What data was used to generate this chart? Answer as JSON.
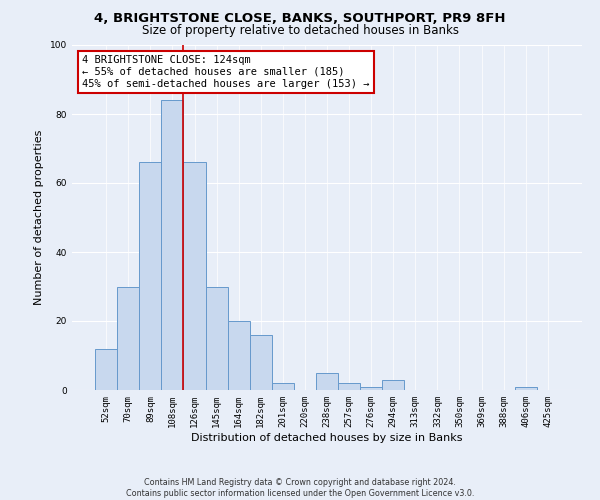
{
  "title1": "4, BRIGHTSTONE CLOSE, BANKS, SOUTHPORT, PR9 8FH",
  "title2": "Size of property relative to detached houses in Banks",
  "xlabel": "Distribution of detached houses by size in Banks",
  "ylabel": "Number of detached properties",
  "categories": [
    "52sqm",
    "70sqm",
    "89sqm",
    "108sqm",
    "126sqm",
    "145sqm",
    "164sqm",
    "182sqm",
    "201sqm",
    "220sqm",
    "238sqm",
    "257sqm",
    "276sqm",
    "294sqm",
    "313sqm",
    "332sqm",
    "350sqm",
    "369sqm",
    "388sqm",
    "406sqm",
    "425sqm"
  ],
  "values": [
    12,
    30,
    66,
    84,
    66,
    30,
    20,
    16,
    2,
    0,
    5,
    2,
    1,
    3,
    0,
    0,
    0,
    0,
    0,
    1,
    0
  ],
  "bar_color": "#c8d8ee",
  "bar_edge_color": "#6699cc",
  "annotation_text": "4 BRIGHTSTONE CLOSE: 124sqm\n← 55% of detached houses are smaller (185)\n45% of semi-detached houses are larger (153) →",
  "annotation_box_color": "#ffffff",
  "annotation_box_edge": "#cc0000",
  "vline_color": "#cc0000",
  "footer1": "Contains HM Land Registry data © Crown copyright and database right 2024.",
  "footer2": "Contains public sector information licensed under the Open Government Licence v3.0.",
  "bg_color": "#e8eef8",
  "ylim": [
    0,
    100
  ],
  "title1_fontsize": 9.5,
  "title2_fontsize": 8.5,
  "xlabel_fontsize": 8,
  "ylabel_fontsize": 8,
  "tick_fontsize": 6.5,
  "annotation_fontsize": 7.5,
  "footer_fontsize": 5.8
}
